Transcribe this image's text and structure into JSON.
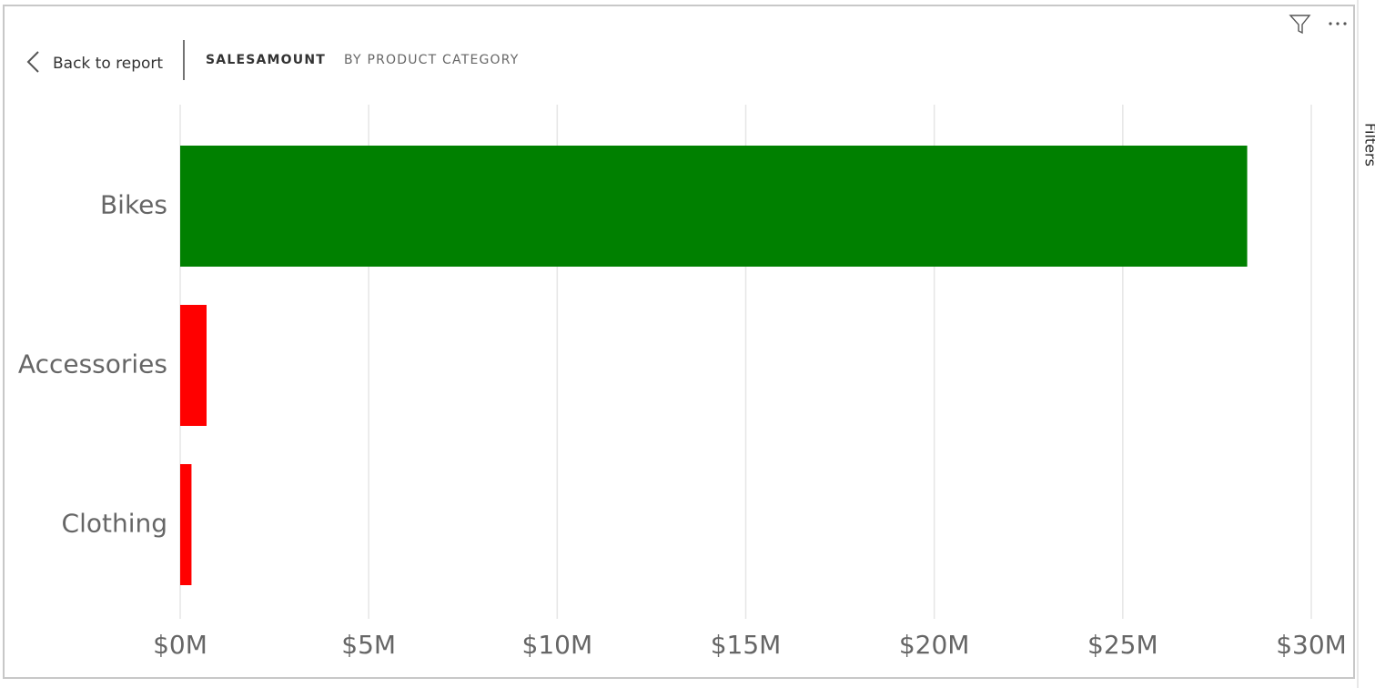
{
  "ui": {
    "back": "Back to report",
    "side_panel": "Filters"
  },
  "chart_data": {
    "type": "bar",
    "orientation": "horizontal",
    "title": "SALESAMOUNT",
    "subtitle": "BY PRODUCT CATEGORY",
    "categories": [
      "Bikes",
      "Accessories",
      "Clothing"
    ],
    "values": [
      28300000,
      700000,
      300000
    ],
    "colors": [
      "#008000",
      "#ff0000",
      "#ff0000"
    ],
    "xlim": [
      0,
      30000000
    ],
    "xticks": [
      {
        "value": 0,
        "label": "$0M"
      },
      {
        "value": 5000000,
        "label": "$5M"
      },
      {
        "value": 10000000,
        "label": "$10M"
      },
      {
        "value": 15000000,
        "label": "$15M"
      },
      {
        "value": 20000000,
        "label": "$20M"
      },
      {
        "value": 25000000,
        "label": "$25M"
      },
      {
        "value": 30000000,
        "label": "$30M"
      }
    ],
    "grid": true
  }
}
